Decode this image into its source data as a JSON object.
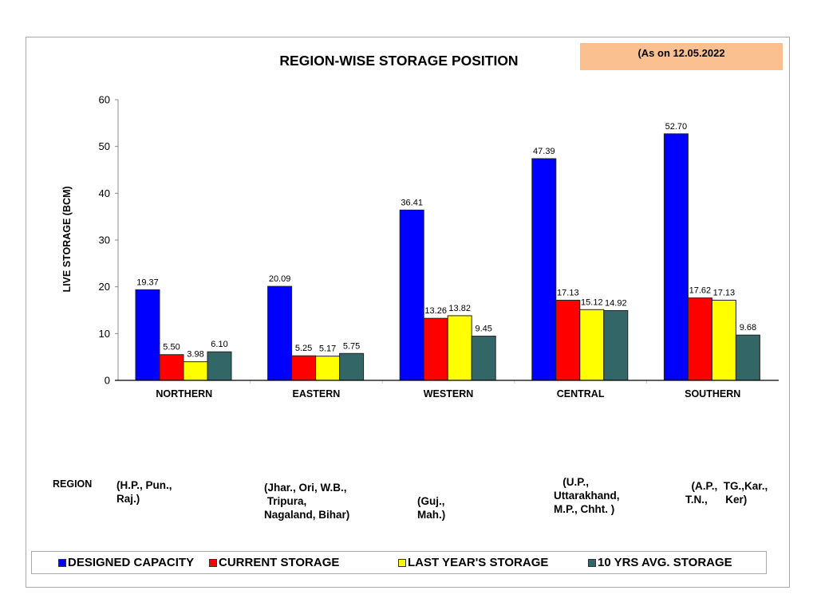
{
  "header": {
    "date_note": "(As on 12.05.2022"
  },
  "region_note_label": "REGION",
  "region_notes": [
    "(H.P., Pun.,\nRaj.)",
    "(Jhar., Ori, W.B.,\n Tripura,\nNagaland, Bihar)",
    "(Guj.,\nMah.)",
    "   (U.P.,\nUttarakhand,\nM.P., Chht. )",
    "  (A.P.,  TG.,Kar.,\nT.N.,      Ker)"
  ],
  "chart_data": {
    "type": "bar",
    "title": "REGION-WISE STORAGE POSITION",
    "xlabel": "",
    "ylabel": "LIVE STORAGE (BCM)",
    "ylim": [
      0,
      60
    ],
    "yticks": [
      0,
      10,
      20,
      30,
      40,
      50,
      60
    ],
    "categories": [
      "NORTHERN",
      "EASTERN",
      "WESTERN",
      "CENTRAL",
      "SOUTHERN"
    ],
    "series": [
      {
        "name": "DESIGNED CAPACITY",
        "color": "#0000ff",
        "values": [
          19.37,
          20.09,
          36.41,
          47.39,
          52.7
        ],
        "labels": [
          "19.37",
          "20.09",
          "36.41",
          "47.39",
          "52.70"
        ]
      },
      {
        "name": "CURRENT STORAGE",
        "color": "#ff0000",
        "values": [
          5.5,
          5.25,
          13.26,
          17.13,
          17.62
        ],
        "labels": [
          "5.50",
          "5.25",
          "13.26",
          "17.13",
          "17.62"
        ]
      },
      {
        "name": "LAST YEAR'S STORAGE",
        "color": "#ffff00",
        "values": [
          3.98,
          5.17,
          13.82,
          15.12,
          17.13
        ],
        "labels": [
          "3.98",
          "5.17",
          "13.82",
          "15.12",
          "17.13"
        ]
      },
      {
        "name": "10 YRS AVG. STORAGE",
        "color": "#336666",
        "values": [
          6.1,
          5.75,
          9.45,
          14.92,
          9.68
        ],
        "labels": [
          "6.10",
          "5.75",
          "9.45",
          "14.92",
          "9.68"
        ]
      }
    ],
    "grid": false,
    "legend_position": "bottom"
  }
}
